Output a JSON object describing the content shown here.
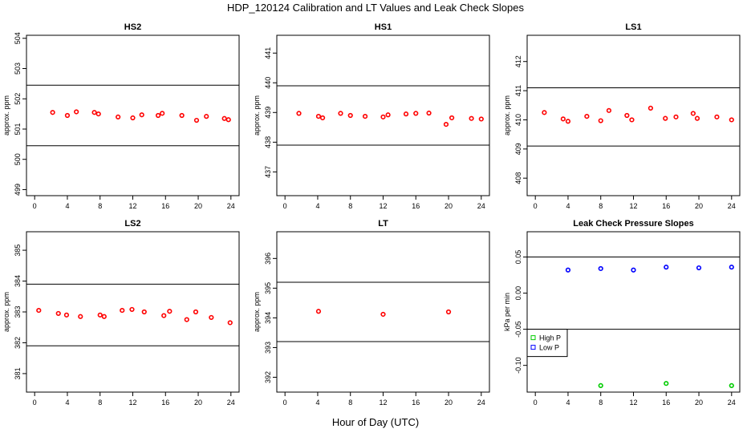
{
  "title": "HDP_120124  Calibration and LT Values and Leak Check Slopes",
  "xlabel": "Hour of Day (UTC)",
  "colors": {
    "points": "#ff0000",
    "high_p": "#00cc00",
    "low_p": "#0000ff",
    "reference_lines": "#000000"
  },
  "chart_data": [
    {
      "type": "scatter",
      "title": "HS2",
      "ylabel": "approx. ppm",
      "xlim": [
        -1,
        25
      ],
      "ylim": [
        498.8,
        504.1
      ],
      "xticks": [
        "0",
        "4",
        "8",
        "12",
        "16",
        "20",
        "24"
      ],
      "yticks": [
        "499",
        "500",
        "501",
        "502",
        "503",
        "504"
      ],
      "hlines": [
        500.45,
        502.45
      ],
      "series": [
        {
          "color": "#ff0000",
          "points": [
            [
              2.2,
              501.55
            ],
            [
              4.0,
              501.45
            ],
            [
              5.1,
              501.57
            ],
            [
              7.3,
              501.55
            ],
            [
              7.8,
              501.5
            ],
            [
              10.2,
              501.4
            ],
            [
              12.0,
              501.37
            ],
            [
              13.1,
              501.47
            ],
            [
              15.1,
              501.45
            ],
            [
              15.6,
              501.52
            ],
            [
              18.0,
              501.45
            ],
            [
              19.8,
              501.29
            ],
            [
              21.0,
              501.42
            ],
            [
              23.2,
              501.35
            ],
            [
              23.7,
              501.31
            ]
          ]
        }
      ]
    },
    {
      "type": "scatter",
      "title": "HS1",
      "ylabel": "approx. ppm",
      "xlim": [
        -1,
        25
      ],
      "ylim": [
        436.2,
        441.6
      ],
      "xticks": [
        "0",
        "4",
        "8",
        "12",
        "16",
        "20",
        "24"
      ],
      "yticks": [
        "437",
        "438",
        "439",
        "440",
        "441"
      ],
      "hlines": [
        437.9,
        439.9
      ],
      "series": [
        {
          "color": "#ff0000",
          "points": [
            [
              1.7,
              438.97
            ],
            [
              4.1,
              438.87
            ],
            [
              4.6,
              438.82
            ],
            [
              6.8,
              438.97
            ],
            [
              8.0,
              438.9
            ],
            [
              9.8,
              438.87
            ],
            [
              12.0,
              438.85
            ],
            [
              12.6,
              438.92
            ],
            [
              14.8,
              438.95
            ],
            [
              16.0,
              438.97
            ],
            [
              17.6,
              438.98
            ],
            [
              19.7,
              438.6
            ],
            [
              20.4,
              438.82
            ],
            [
              22.8,
              438.8
            ],
            [
              24.0,
              438.78
            ]
          ]
        }
      ]
    },
    {
      "type": "scatter",
      "title": "LS1",
      "ylabel": "approx. ppm",
      "xlim": [
        -1,
        25
      ],
      "ylim": [
        407.4,
        412.9
      ],
      "xticks": [
        "0",
        "4",
        "8",
        "12",
        "16",
        "20",
        "24"
      ],
      "yticks": [
        "408",
        "409",
        "410",
        "411",
        "412"
      ],
      "hlines": [
        409.1,
        411.1
      ],
      "series": [
        {
          "color": "#ff0000",
          "points": [
            [
              1.1,
              410.25
            ],
            [
              3.4,
              410.03
            ],
            [
              4.0,
              409.95
            ],
            [
              6.3,
              410.12
            ],
            [
              8.0,
              409.97
            ],
            [
              9.0,
              410.32
            ],
            [
              11.2,
              410.15
            ],
            [
              11.8,
              410.0
            ],
            [
              14.1,
              410.4
            ],
            [
              15.9,
              410.05
            ],
            [
              17.2,
              410.1
            ],
            [
              19.3,
              410.22
            ],
            [
              19.8,
              410.05
            ],
            [
              22.2,
              410.1
            ],
            [
              24.0,
              410.0
            ]
          ]
        }
      ]
    },
    {
      "type": "scatter",
      "title": "LS2",
      "ylabel": "approx. ppm",
      "xlim": [
        -1,
        25
      ],
      "ylim": [
        380.4,
        385.6
      ],
      "xticks": [
        "0",
        "4",
        "8",
        "12",
        "16",
        "20",
        "24"
      ],
      "yticks": [
        "381",
        "382",
        "383",
        "384",
        "385"
      ],
      "hlines": [
        381.9,
        383.9
      ],
      "series": [
        {
          "color": "#ff0000",
          "points": [
            [
              0.5,
              383.05
            ],
            [
              2.9,
              382.95
            ],
            [
              3.9,
              382.9
            ],
            [
              5.6,
              382.85
            ],
            [
              8.0,
              382.9
            ],
            [
              8.5,
              382.85
            ],
            [
              10.7,
              383.05
            ],
            [
              11.9,
              383.08
            ],
            [
              13.4,
              383.0
            ],
            [
              15.8,
              382.88
            ],
            [
              16.5,
              383.02
            ],
            [
              18.6,
              382.75
            ],
            [
              19.7,
              383.0
            ],
            [
              21.6,
              382.82
            ],
            [
              23.9,
              382.65
            ]
          ]
        }
      ]
    },
    {
      "type": "scatter",
      "title": "LT",
      "ylabel": "approx. ppm",
      "xlim": [
        -1,
        25
      ],
      "ylim": [
        391.5,
        396.9
      ],
      "xticks": [
        "0",
        "4",
        "8",
        "12",
        "16",
        "20",
        "24"
      ],
      "yticks": [
        "392",
        "393",
        "394",
        "395",
        "396"
      ],
      "hlines": [
        393.2,
        395.2
      ],
      "series": [
        {
          "color": "#ff0000",
          "points": [
            [
              4.1,
              394.22
            ],
            [
              12.0,
              394.12
            ],
            [
              20.0,
              394.2
            ]
          ]
        }
      ]
    },
    {
      "type": "scatter",
      "title": "Leak Check Pressure Slopes",
      "ylabel": "kPa per min",
      "xlim": [
        -1,
        25
      ],
      "ylim": [
        -0.137,
        0.085
      ],
      "xticks": [
        "0",
        "4",
        "8",
        "12",
        "16",
        "20",
        "24"
      ],
      "yticks": [
        "-0.10",
        "-0.05",
        "0.00",
        "0.05"
      ],
      "hlines": [
        -0.05,
        0.05
      ],
      "legend": {
        "placement": "lower-left",
        "entries": [
          "High P",
          "Low P"
        ]
      },
      "series": [
        {
          "name": "High P",
          "color": "#00cc00",
          "points": [
            [
              8.0,
              -0.128
            ],
            [
              16.0,
              -0.125
            ],
            [
              24.0,
              -0.128
            ]
          ]
        },
        {
          "name": "Low P",
          "color": "#0000ff",
          "points": [
            [
              4.0,
              0.032
            ],
            [
              8.0,
              0.034
            ],
            [
              12.0,
              0.032
            ],
            [
              16.0,
              0.036
            ],
            [
              20.0,
              0.035
            ],
            [
              24.0,
              0.036
            ]
          ]
        }
      ]
    }
  ]
}
